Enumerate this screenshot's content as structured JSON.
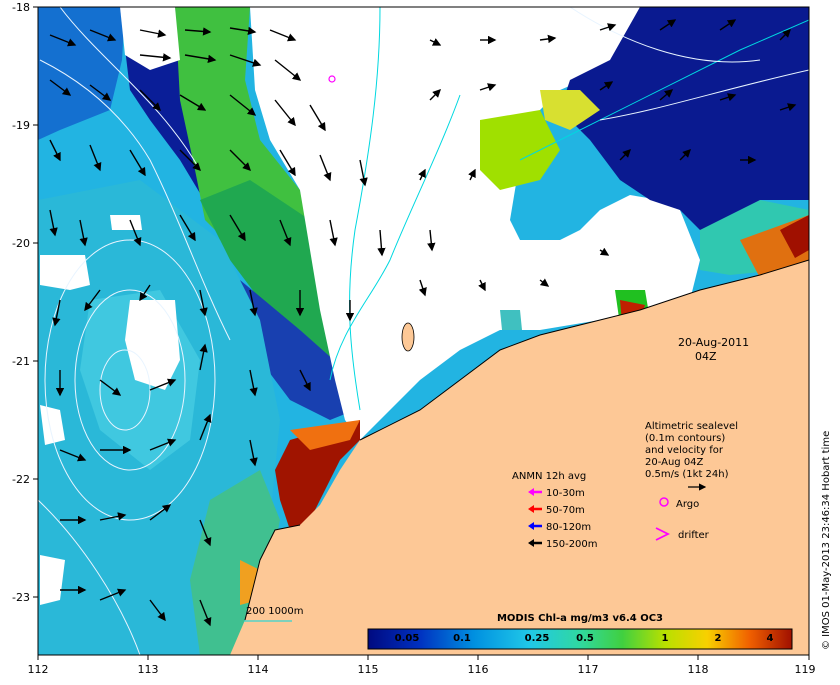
{
  "map": {
    "date_label": "20-Aug-2011",
    "time_label": "04Z",
    "credit": "© IMOS 01-May-2013 23:46:34 Hobart time",
    "lon_ticks": [
      "112",
      "113",
      "114",
      "115",
      "116",
      "117",
      "118",
      "119"
    ],
    "lat_ticks": [
      "-18",
      "-19",
      "-20",
      "-21",
      "-22",
      "-23"
    ]
  },
  "altimetry": {
    "lines": [
      "Altimetric sealevel",
      "(0.1m contours)",
      "and velocity for",
      "20-Aug 04Z",
      "0.5m/s (1kt 24h)"
    ]
  },
  "anmn": {
    "title": "ANMN 12h avg",
    "items": [
      {
        "label": "10-30m",
        "color": "#ff00ff"
      },
      {
        "label": "50-70m",
        "color": "#ff0000"
      },
      {
        "label": "80-120m",
        "color": "#0000ff"
      },
      {
        "label": "150-200m",
        "color": "#000000"
      }
    ]
  },
  "markers": {
    "argo_label": "Argo",
    "drifter_label": "drifter",
    "argo_color": "#ff00ff",
    "drifter_color": "#ff00ff"
  },
  "bathy_label": "200  1000m",
  "colorbar": {
    "title": "MODIS Chl-a mg/m3 v6.4 OC3",
    "ticks": [
      "0.05",
      "0.1",
      "0.25",
      "0.5",
      "1",
      "2",
      "4"
    ]
  },
  "colors": {
    "land": "#fdc896",
    "deep_blue": "#00108c",
    "cyan": "#16c0e6",
    "green": "#30c830",
    "red": "#a81400"
  }
}
